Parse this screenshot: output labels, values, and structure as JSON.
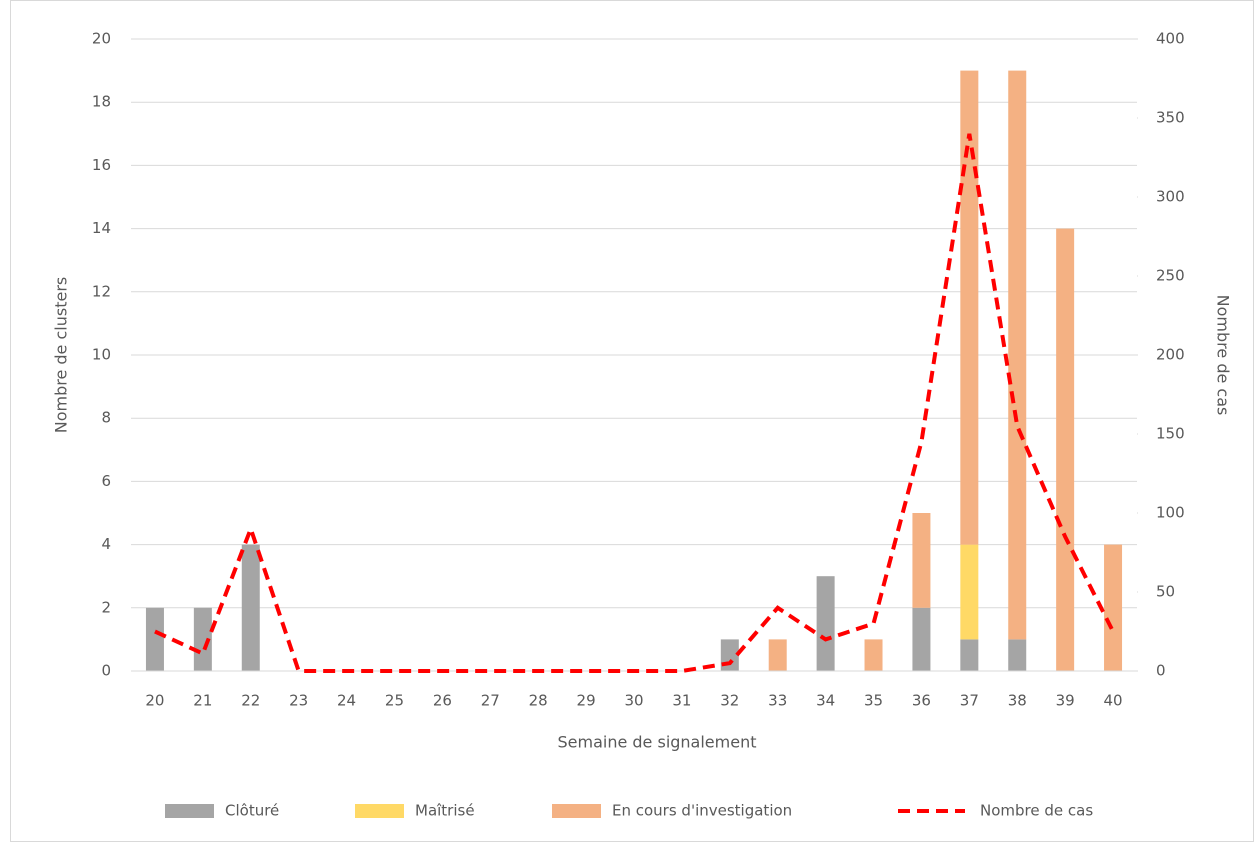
{
  "chart_data": {
    "type": "bar",
    "categories": [
      "20",
      "21",
      "22",
      "23",
      "24",
      "25",
      "26",
      "27",
      "28",
      "29",
      "30",
      "31",
      "32",
      "33",
      "34",
      "35",
      "36",
      "37",
      "38",
      "39",
      "40"
    ],
    "series": [
      {
        "name": "Clôturé",
        "color": "#a5a5a5",
        "values": [
          2,
          2,
          4,
          0,
          0,
          0,
          0,
          0,
          0,
          0,
          0,
          0,
          1,
          0,
          3,
          0,
          2,
          1,
          1,
          0,
          0
        ]
      },
      {
        "name": "Maîtrisé",
        "color": "#ffd966",
        "values": [
          0,
          0,
          0,
          0,
          0,
          0,
          0,
          0,
          0,
          0,
          0,
          0,
          0,
          0,
          0,
          0,
          0,
          3,
          0,
          0,
          0
        ]
      },
      {
        "name": "En cours d'investigation",
        "color": "#f4b183",
        "values": [
          0,
          0,
          0,
          0,
          0,
          0,
          0,
          0,
          0,
          0,
          0,
          0,
          0,
          1,
          0,
          1,
          3,
          15,
          18,
          14,
          4
        ]
      },
      {
        "name": "Nombre de cas",
        "color": "#ff0000",
        "type": "line",
        "line_style": "dashed",
        "axis": "y2",
        "values": [
          25,
          11,
          90,
          0,
          0,
          0,
          0,
          0,
          0,
          0,
          0,
          0,
          5,
          40,
          20,
          30,
          145,
          340,
          155,
          85,
          25
        ]
      }
    ],
    "stacked": true,
    "xlabel": "Semaine de signalement",
    "ylabel": "Nombre de clusters",
    "y2label": "Nombre de cas",
    "ylim": [
      0,
      20
    ],
    "yticks": [
      0,
      2,
      4,
      6,
      8,
      10,
      12,
      14,
      16,
      18,
      20
    ],
    "y2lim": [
      0,
      400
    ],
    "y2ticks": [
      0,
      50,
      100,
      150,
      200,
      250,
      300,
      350,
      400
    ],
    "grid": true,
    "legend": "bottom"
  }
}
